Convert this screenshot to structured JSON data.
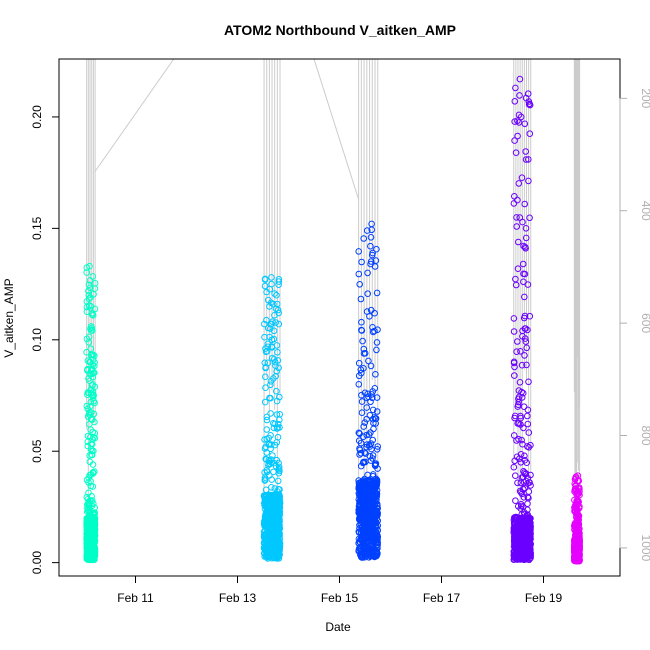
{
  "chart_data": {
    "type": "scatter",
    "title": "ATOM2 Northbound V_aitken_AMP",
    "xlabel": "Date",
    "ylabel": "V_aitken_AMP",
    "x_unit": "date",
    "xlim": [
      "2022-02-09 12:00",
      "2022-02-20 12:00"
    ],
    "ylim": [
      -0.006,
      0.226
    ],
    "x_ticks": [
      {
        "label": "Feb 11",
        "date": "2022-02-11"
      },
      {
        "label": "Feb 13",
        "date": "2022-02-13"
      },
      {
        "label": "Feb 15",
        "date": "2022-02-15"
      },
      {
        "label": "Feb 17",
        "date": "2022-02-17"
      },
      {
        "label": "Feb 19",
        "date": "2022-02-19"
      }
    ],
    "y_ticks": [
      0.0,
      0.05,
      0.1,
      0.15,
      0.2
    ],
    "y_tick_labels": [
      "0.00",
      "0.05",
      "0.10",
      "0.15",
      "0.20"
    ],
    "y2_ticks": [
      200,
      400,
      600,
      800,
      1000
    ],
    "y2_tick_labels": [
      "200",
      "400",
      "600",
      "800",
      "1000"
    ],
    "y2lim": [
      1050,
      130
    ],
    "y2_reversed": true,
    "series": [
      {
        "color": "#00FFC8",
        "x_start": "2022-02-10 01:00",
        "x_end": "2022-02-10 05:00",
        "y_median": 0.012,
        "y_max": 0.133,
        "outliers": [
          0.133,
          0.119,
          0.115,
          0.111,
          0.106,
          0.096,
          0.09,
          0.085,
          0.08,
          0.076
        ]
      },
      {
        "color": "#00C8FF",
        "x_start": "2022-02-13 12:30",
        "x_end": "2022-02-13 20:00",
        "y_median": 0.018,
        "y_max": 0.128,
        "outliers": [
          0.128,
          0.125,
          0.12,
          0.116,
          0.111,
          0.107,
          0.105,
          0.1,
          0.097
        ]
      },
      {
        "color": "#0040FF",
        "x_start": "2022-02-15 09:00",
        "x_end": "2022-02-15 18:00",
        "y_median": 0.022,
        "y_max": 0.152,
        "outliers": [
          0.152,
          0.149,
          0.146,
          0.142,
          0.138,
          0.134,
          0.13,
          0.074,
          0.06,
          0.055,
          0.053
        ]
      },
      {
        "color": "#6A00FF",
        "x_start": "2022-02-18 10:00",
        "x_end": "2022-02-18 18:00",
        "y_median": 0.012,
        "y_max": 0.217,
        "outliers": [
          0.217,
          0.2,
          0.126,
          0.105,
          0.062,
          0.055,
          0.045,
          0.04,
          0.036
        ]
      },
      {
        "color": "#E600FF",
        "x_start": "2022-02-19 14:30",
        "x_end": "2022-02-19 17:00",
        "y_median": 0.006,
        "y_max": 0.039,
        "outliers": [
          0.039,
          0.028,
          0.026,
          0.022
        ]
      }
    ],
    "altitude_line_color": "#cccccc",
    "grid": false,
    "legend": "none"
  }
}
